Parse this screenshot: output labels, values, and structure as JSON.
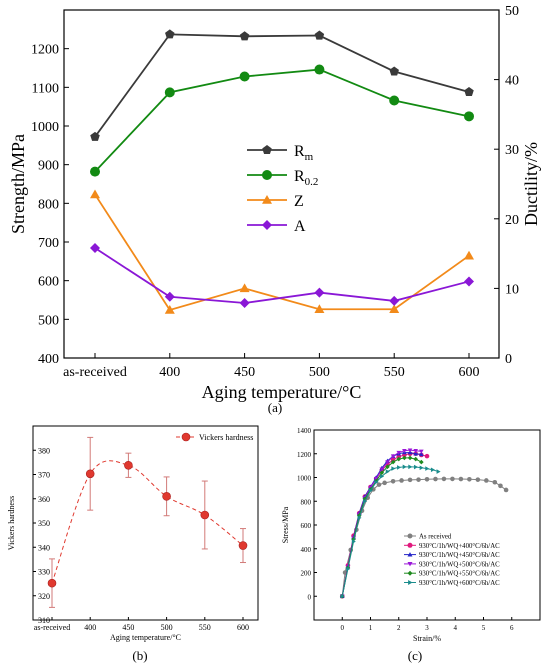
{
  "chart_data": [
    {
      "panel": "(a)",
      "type": "line",
      "xlabel": "Aging temperature/°C",
      "ylabel": "Strength/MPa",
      "y2label": "Ductility/%",
      "categories": [
        "as-received",
        "400",
        "450",
        "500",
        "550",
        "600"
      ],
      "ylim": [
        400,
        1300
      ],
      "y2lim": [
        0,
        50
      ],
      "yticks": [
        400,
        500,
        600,
        700,
        800,
        900,
        1000,
        1100,
        1200
      ],
      "y2ticks": [
        0,
        10,
        20,
        30,
        40,
        50
      ],
      "legend_position": "center",
      "series": [
        {
          "name": "R",
          "sub": "m",
          "axis": "left",
          "marker": "pentagon",
          "color": "#3a3a3a",
          "values": [
            972,
            1237,
            1232,
            1234,
            1141,
            1088
          ]
        },
        {
          "name": "R",
          "sub": "0.2",
          "axis": "left",
          "marker": "circle",
          "color": "#128a12",
          "values": [
            882,
            1087,
            1128,
            1146,
            1066,
            1025
          ]
        },
        {
          "name": "Z",
          "sub": "",
          "axis": "right",
          "marker": "triangle",
          "color": "#f28a1a",
          "values": [
            23.5,
            6.9,
            10.0,
            7.0,
            7.0,
            14.7
          ]
        },
        {
          "name": "A",
          "sub": "",
          "axis": "right",
          "marker": "diamond",
          "color": "#8a17d6",
          "values": [
            15.8,
            8.8,
            7.9,
            9.4,
            8.2,
            11.0
          ]
        }
      ]
    },
    {
      "panel": "(b)",
      "type": "scatter",
      "xlabel": "Aging temperature/°C",
      "ylabel": "Vickers hardness",
      "categories": [
        "as-received",
        "400",
        "450",
        "500",
        "550",
        "600"
      ],
      "ylim": [
        310,
        390
      ],
      "yticks": [
        310,
        320,
        330,
        340,
        350,
        360,
        370,
        380
      ],
      "legend_position": "top-right",
      "series": [
        {
          "name": "Vickers hardness",
          "color": "#e0392f",
          "values": [
            325.2,
            370.3,
            373.8,
            361.0,
            353.3,
            340.7
          ],
          "errors": [
            10,
            15,
            5,
            8,
            14,
            7
          ]
        }
      ]
    },
    {
      "panel": "(c)",
      "type": "line",
      "xlabel": "Strain/%",
      "ylabel": "Stress/MPa",
      "xlim": [
        -1,
        7
      ],
      "ylim": [
        -200,
        1400
      ],
      "xticks": [
        0,
        1,
        2,
        3,
        4,
        5,
        6
      ],
      "yticks": [
        0,
        200,
        400,
        600,
        800,
        1000,
        1200,
        1400
      ],
      "legend_position": "bottom-right",
      "series": [
        {
          "name": "As received",
          "marker": "circle",
          "color": "#808080",
          "x": [
            0,
            0.1,
            0.3,
            0.5,
            0.7,
            0.9,
            1.1,
            1.3,
            1.5,
            1.8,
            2.1,
            2.4,
            2.7,
            3.0,
            3.3,
            3.6,
            3.9,
            4.2,
            4.5,
            4.8,
            5.1,
            5.4,
            5.6,
            5.8
          ],
          "y": [
            0,
            200,
            390,
            560,
            720,
            830,
            900,
            940,
            955,
            968,
            975,
            980,
            982,
            985,
            987,
            988,
            988,
            987,
            985,
            982,
            975,
            960,
            930,
            895
          ]
        },
        {
          "name": "930°C/1h/WQ+400°C/6h/AC",
          "marker": "circle",
          "color": "#e0197d",
          "x": [
            0,
            0.2,
            0.4,
            0.6,
            0.8,
            1.0,
            1.2,
            1.4,
            1.6,
            1.8,
            2.0,
            2.2,
            2.4,
            2.6,
            2.8,
            3.0
          ],
          "y": [
            0,
            260,
            510,
            700,
            840,
            920,
            990,
            1060,
            1110,
            1150,
            1175,
            1190,
            1200,
            1200,
            1190,
            1180
          ]
        },
        {
          "name": "930°C/1h/WQ+450°C/6h/AC",
          "marker": "triangle",
          "color": "#2525c8",
          "x": [
            0,
            0.2,
            0.4,
            0.6,
            0.8,
            1.0,
            1.2,
            1.4,
            1.6,
            1.8,
            2.0,
            2.2,
            2.4,
            2.6,
            2.8
          ],
          "y": [
            0,
            250,
            500,
            700,
            840,
            920,
            1000,
            1080,
            1140,
            1180,
            1200,
            1210,
            1210,
            1200,
            1195
          ]
        },
        {
          "name": "930°C/1h/WQ+500°C/6h/AC",
          "marker": "triangle-down",
          "color": "#9a16d8",
          "x": [
            0,
            0.2,
            0.4,
            0.6,
            0.8,
            1.0,
            1.2,
            1.4,
            1.6,
            1.8,
            2.0,
            2.2,
            2.4,
            2.6,
            2.8
          ],
          "y": [
            0,
            250,
            490,
            690,
            830,
            915,
            990,
            1070,
            1130,
            1180,
            1210,
            1225,
            1230,
            1225,
            1220
          ]
        },
        {
          "name": "930°C/1h/WQ+550°C/6h/AC",
          "marker": "diamond",
          "color": "#1e8a1e",
          "x": [
            0,
            0.2,
            0.4,
            0.6,
            0.8,
            1.0,
            1.2,
            1.4,
            1.6,
            1.8,
            2.0,
            2.2,
            2.4,
            2.6,
            2.8
          ],
          "y": [
            0,
            240,
            480,
            680,
            820,
            900,
            970,
            1040,
            1090,
            1130,
            1155,
            1165,
            1165,
            1155,
            1130
          ]
        },
        {
          "name": "930°C/1h/WQ+600°C/6h/AC",
          "marker": "triangle-right",
          "color": "#1a8c8c",
          "x": [
            0,
            0.2,
            0.4,
            0.6,
            0.8,
            1.0,
            1.2,
            1.4,
            1.6,
            1.8,
            2.0,
            2.2,
            2.4,
            2.6,
            2.8,
            3.0,
            3.2,
            3.4
          ],
          "y": [
            0,
            230,
            460,
            660,
            800,
            890,
            960,
            1010,
            1050,
            1075,
            1085,
            1090,
            1090,
            1088,
            1082,
            1075,
            1065,
            1050
          ]
        }
      ]
    }
  ],
  "captions": [
    "(a)",
    "(b)",
    "(c)"
  ]
}
